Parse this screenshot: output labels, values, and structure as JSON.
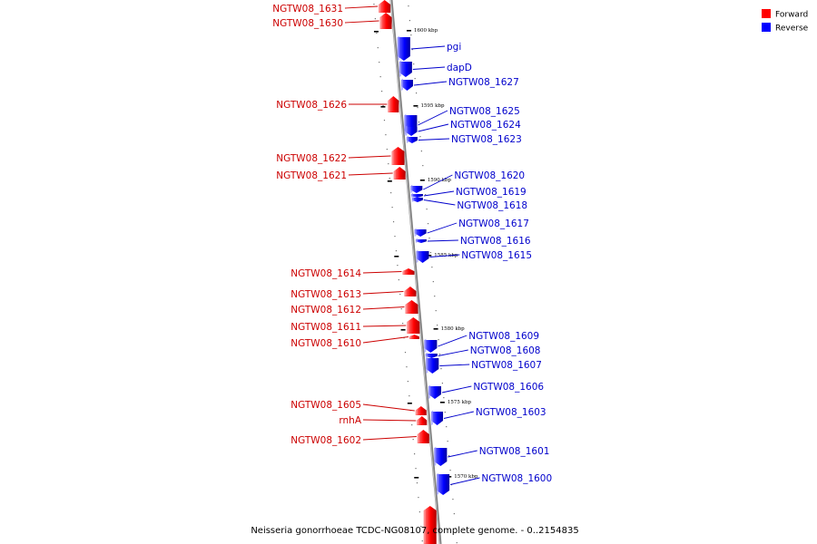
{
  "legend": {
    "forward": {
      "label": "Forward",
      "color": "#ff0000"
    },
    "reverse": {
      "label": "Reverse",
      "color": "#0000ff"
    }
  },
  "caption": "Neisseria gonorrhoeae TCDC-NG08107, complete genome. - 0..2154835",
  "ticks": [
    {
      "label": "1600 kbp"
    },
    {
      "label": "1595 kbp"
    },
    {
      "label": "1590 kbp"
    },
    {
      "label": "1585 kbp"
    },
    {
      "label": "1580 kbp"
    },
    {
      "label": "1575 kbp"
    },
    {
      "label": "1570 kbp"
    }
  ],
  "forward_genes": [
    {
      "name": "NGTW08_1631"
    },
    {
      "name": "NGTW08_1630"
    },
    {
      "name": "NGTW08_1626"
    },
    {
      "name": "NGTW08_1622"
    },
    {
      "name": "NGTW08_1621"
    },
    {
      "name": "NGTW08_1614"
    },
    {
      "name": "NGTW08_1613"
    },
    {
      "name": "NGTW08_1612"
    },
    {
      "name": "NGTW08_1611"
    },
    {
      "name": "NGTW08_1610"
    },
    {
      "name": "NGTW08_1605"
    },
    {
      "name": "rnhA"
    },
    {
      "name": "NGTW08_1602"
    }
  ],
  "reverse_genes": [
    {
      "name": "pgi"
    },
    {
      "name": "dapD"
    },
    {
      "name": "NGTW08_1627"
    },
    {
      "name": "NGTW08_1625"
    },
    {
      "name": "NGTW08_1624"
    },
    {
      "name": "NGTW08_1623"
    },
    {
      "name": "NGTW08_1620"
    },
    {
      "name": "NGTW08_1619"
    },
    {
      "name": "NGTW08_1618"
    },
    {
      "name": "NGTW08_1617"
    },
    {
      "name": "NGTW08_1616"
    },
    {
      "name": "NGTW08_1615"
    },
    {
      "name": "NGTW08_1609"
    },
    {
      "name": "NGTW08_1608"
    },
    {
      "name": "NGTW08_1607"
    },
    {
      "name": "NGTW08_1606"
    },
    {
      "name": "NGTW08_1603"
    },
    {
      "name": "NGTW08_1601"
    },
    {
      "name": "NGTW08_1600"
    }
  ]
}
